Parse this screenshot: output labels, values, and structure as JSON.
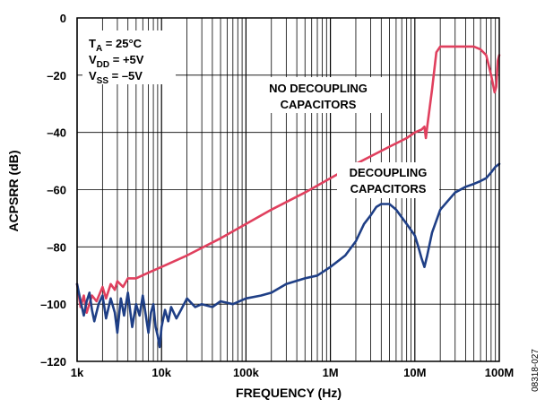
{
  "chart_data": {
    "type": "line",
    "xlabel": "FREQUENCY (Hz)",
    "ylabel": "ACPSRR (dB)",
    "x_scale": "log",
    "xlim": [
      1000,
      100000000
    ],
    "ylim": [
      -120,
      0
    ],
    "grid": true,
    "x_ticks": [
      {
        "value": 1000,
        "label": "1k"
      },
      {
        "value": 10000,
        "label": "10k"
      },
      {
        "value": 100000,
        "label": "100k"
      },
      {
        "value": 1000000,
        "label": "1M"
      },
      {
        "value": 10000000,
        "label": "10M"
      },
      {
        "value": 100000000,
        "label": "100M"
      }
    ],
    "y_ticks": [
      {
        "value": 0,
        "label": "0"
      },
      {
        "value": -20,
        "label": "–20"
      },
      {
        "value": -40,
        "label": "–40"
      },
      {
        "value": -60,
        "label": "–60"
      },
      {
        "value": -80,
        "label": "–80"
      },
      {
        "value": -100,
        "label": "–100"
      },
      {
        "value": -120,
        "label": "–120"
      }
    ],
    "conditions": {
      "line1": {
        "main": "T",
        "sub": "A",
        "rest": " = 25°C"
      },
      "line2": {
        "main": "V",
        "sub": "DD",
        "rest": " = +5V"
      },
      "line3": {
        "main": "V",
        "sub": "SS",
        "rest": " = –5V"
      }
    },
    "series": [
      {
        "name": "NO DECOUPLING CAPACITORS",
        "label_lines": [
          "NO DECOUPLING",
          "CAPACITORS"
        ],
        "color": "#e0405e",
        "points": [
          [
            1000,
            -93
          ],
          [
            1100,
            -101
          ],
          [
            1200,
            -97
          ],
          [
            1300,
            -103
          ],
          [
            1500,
            -97
          ],
          [
            1700,
            -99
          ],
          [
            2000,
            -94
          ],
          [
            2200,
            -98
          ],
          [
            2500,
            -93
          ],
          [
            2800,
            -95
          ],
          [
            3000,
            -92
          ],
          [
            3500,
            -94
          ],
          [
            4000,
            -91
          ],
          [
            5000,
            -91
          ],
          [
            7000,
            -89
          ],
          [
            10000,
            -87
          ],
          [
            20000,
            -83
          ],
          [
            50000,
            -77
          ],
          [
            100000,
            -72
          ],
          [
            200000,
            -67
          ],
          [
            500000,
            -61
          ],
          [
            1000000,
            -56
          ],
          [
            2000000,
            -51
          ],
          [
            5000000,
            -45
          ],
          [
            8000000,
            -42
          ],
          [
            10000000,
            -40
          ],
          [
            12000000,
            -39
          ],
          [
            13000000,
            -38
          ],
          [
            13500000,
            -42
          ],
          [
            14000000,
            -38
          ],
          [
            16000000,
            -25
          ],
          [
            18000000,
            -12
          ],
          [
            20000000,
            -10
          ],
          [
            25000000,
            -10
          ],
          [
            30000000,
            -10
          ],
          [
            40000000,
            -10
          ],
          [
            50000000,
            -10
          ],
          [
            60000000,
            -11
          ],
          [
            70000000,
            -13
          ],
          [
            80000000,
            -20
          ],
          [
            88000000,
            -26
          ],
          [
            92000000,
            -24
          ],
          [
            96000000,
            -15
          ],
          [
            100000000,
            -13
          ]
        ]
      },
      {
        "name": "DECOUPLING CAPACITORS",
        "label_lines": [
          "DECOUPLING",
          "CAPACITORS"
        ],
        "color": "#1f3f86",
        "points": [
          [
            1000,
            -93
          ],
          [
            1100,
            -99
          ],
          [
            1200,
            -104
          ],
          [
            1300,
            -99
          ],
          [
            1400,
            -96
          ],
          [
            1500,
            -102
          ],
          [
            1600,
            -106
          ],
          [
            1800,
            -100
          ],
          [
            2000,
            -97
          ],
          [
            2200,
            -105
          ],
          [
            2500,
            -98
          ],
          [
            2800,
            -103
          ],
          [
            3000,
            -110
          ],
          [
            3300,
            -98
          ],
          [
            3600,
            -104
          ],
          [
            4000,
            -96
          ],
          [
            4500,
            -108
          ],
          [
            5000,
            -100
          ],
          [
            5500,
            -104
          ],
          [
            6000,
            -97
          ],
          [
            7000,
            -110
          ],
          [
            7500,
            -103
          ],
          [
            8000,
            -100
          ],
          [
            8500,
            -108
          ],
          [
            9000,
            -111
          ],
          [
            9500,
            -115
          ],
          [
            10000,
            -108
          ],
          [
            11000,
            -102
          ],
          [
            12000,
            -106
          ],
          [
            13000,
            -101
          ],
          [
            15000,
            -105
          ],
          [
            17000,
            -102
          ],
          [
            20000,
            -98
          ],
          [
            25000,
            -101
          ],
          [
            30000,
            -100
          ],
          [
            40000,
            -101
          ],
          [
            50000,
            -99
          ],
          [
            70000,
            -100
          ],
          [
            100000,
            -98
          ],
          [
            150000,
            -97
          ],
          [
            200000,
            -96
          ],
          [
            300000,
            -93
          ],
          [
            500000,
            -91
          ],
          [
            700000,
            -90
          ],
          [
            1000000,
            -87
          ],
          [
            1500000,
            -83
          ],
          [
            2000000,
            -78
          ],
          [
            2500000,
            -72
          ],
          [
            3000000,
            -69
          ],
          [
            3500000,
            -66
          ],
          [
            4000000,
            -65
          ],
          [
            5000000,
            -65
          ],
          [
            6000000,
            -67
          ],
          [
            8000000,
            -72
          ],
          [
            10000000,
            -76
          ],
          [
            11000000,
            -80
          ],
          [
            12000000,
            -84
          ],
          [
            13000000,
            -87
          ],
          [
            14000000,
            -83
          ],
          [
            16000000,
            -75
          ],
          [
            20000000,
            -67
          ],
          [
            30000000,
            -61
          ],
          [
            40000000,
            -59
          ],
          [
            50000000,
            -58
          ],
          [
            60000000,
            -57
          ],
          [
            70000000,
            -56
          ],
          [
            80000000,
            -54
          ],
          [
            90000000,
            -52
          ],
          [
            100000000,
            -51
          ]
        ]
      }
    ],
    "figure_id": "08318-027"
  }
}
